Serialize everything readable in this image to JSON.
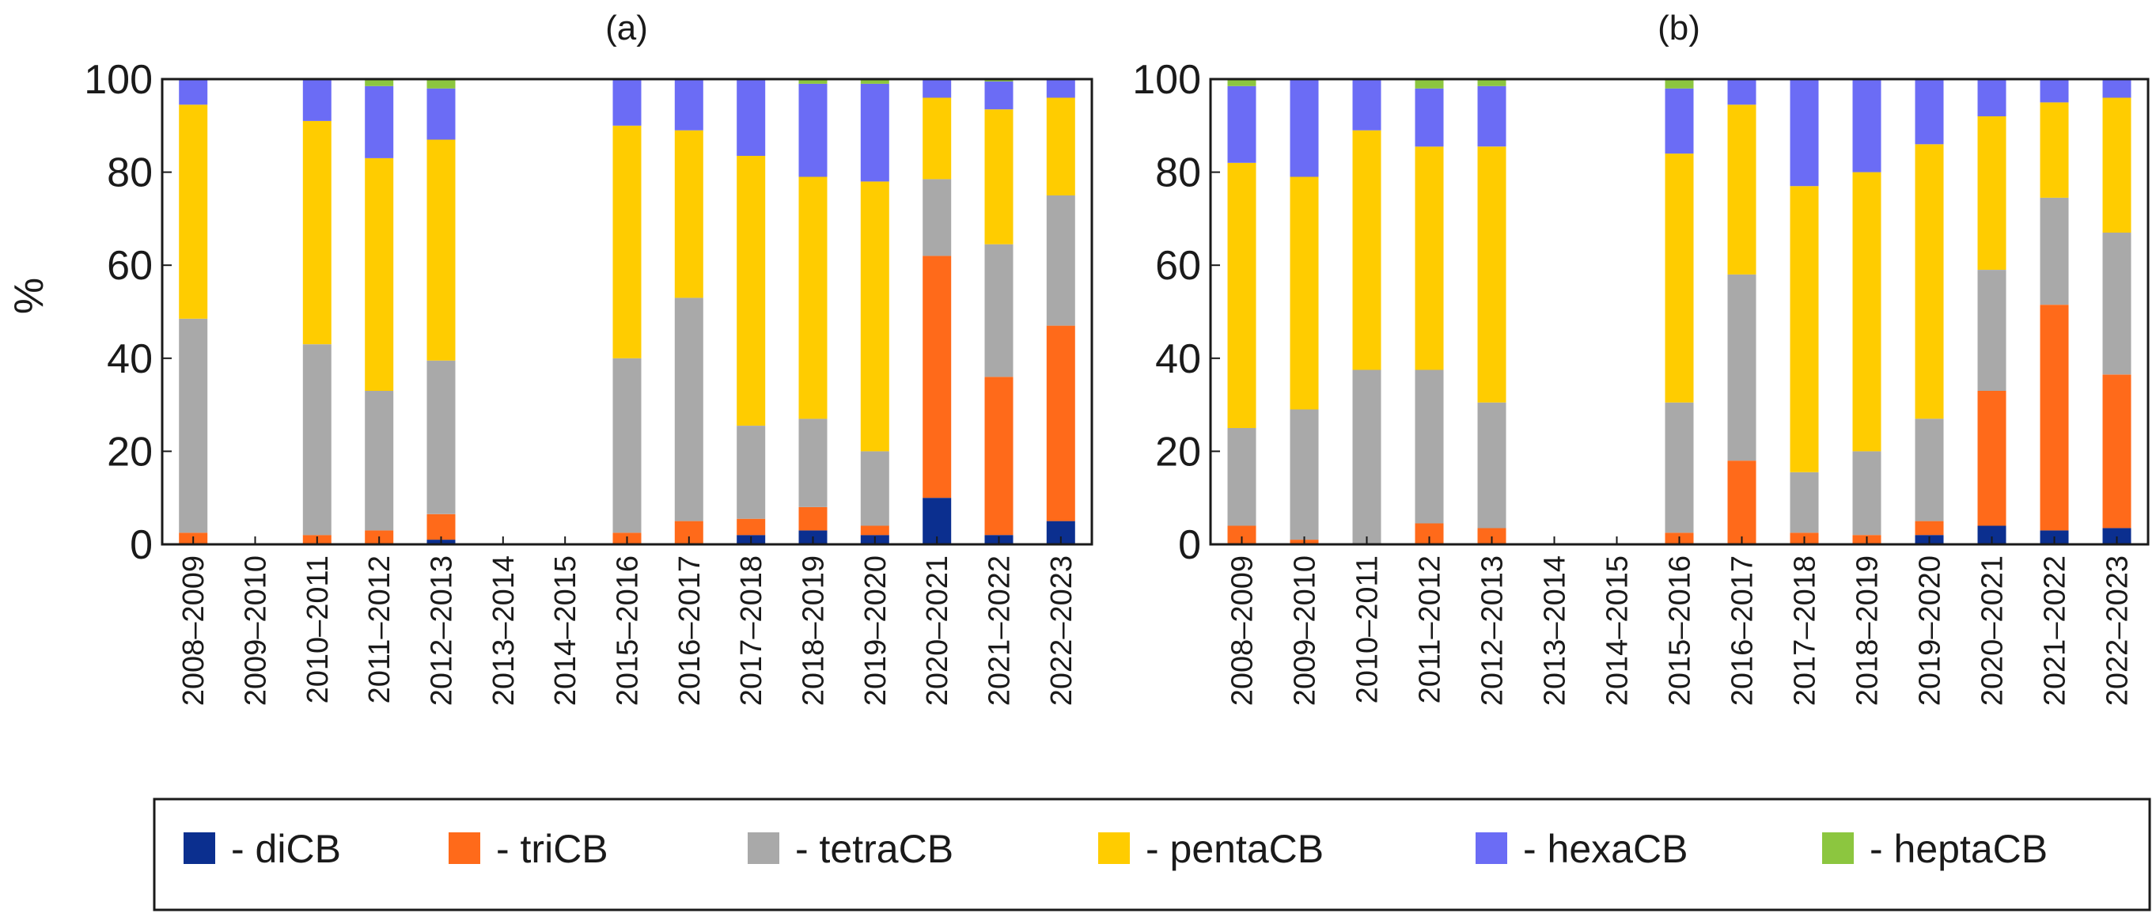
{
  "chart_data": {
    "type": "bar",
    "stacked": true,
    "ylim": [
      0,
      100
    ],
    "yticks": [
      0,
      20,
      40,
      60,
      80,
      100
    ],
    "ylabel": "%",
    "grid": false,
    "legend_position": "bottom",
    "categories": [
      "2008–2009",
      "2009–2010",
      "2010–2011",
      "2011–2012",
      "2012–2013",
      "2013–2014",
      "2014–2015",
      "2015–2016",
      "2016–2017",
      "2017–2018",
      "2018–2019",
      "2019–2020",
      "2020–2021",
      "2021–2022",
      "2022–2023"
    ],
    "legend": [
      {
        "key": "diCB",
        "label": "- diCB",
        "color": "#0b2f8f"
      },
      {
        "key": "triCB",
        "label": "- triCB",
        "color": "#ff6a1a"
      },
      {
        "key": "tetraCB",
        "label": "- tetraCB",
        "color": "#a9a9a9"
      },
      {
        "key": "pentaCB",
        "label": "- pentaCB",
        "color": "#ffcc00"
      },
      {
        "key": "hexaCB",
        "label": "- hexaCB",
        "color": "#6b6cf5"
      },
      {
        "key": "heptaCB",
        "label": "- heptaCB",
        "color": "#8cc63f"
      }
    ],
    "panels": [
      {
        "title": "(a)",
        "series": [
          {
            "name": "diCB",
            "values": [
              0,
              null,
              0,
              0,
              1,
              null,
              null,
              0,
              0,
              2,
              3,
              2,
              10,
              2,
              5
            ]
          },
          {
            "name": "triCB",
            "values": [
              2.5,
              null,
              2,
              3,
              5.5,
              null,
              null,
              2.5,
              5,
              3.5,
              5,
              2,
              52,
              34,
              42
            ]
          },
          {
            "name": "tetraCB",
            "values": [
              46,
              null,
              41,
              30,
              33,
              null,
              null,
              37.5,
              48,
              20,
              19,
              16,
              16.5,
              28.5,
              28
            ]
          },
          {
            "name": "pentaCB",
            "values": [
              46,
              null,
              48,
              50,
              47.5,
              null,
              null,
              50,
              36,
              58,
              52,
              58,
              17.5,
              29,
              21
            ]
          },
          {
            "name": "hexaCB",
            "values": [
              5.5,
              null,
              9,
              15.5,
              11,
              null,
              null,
              10,
              11,
              16.5,
              20,
              21,
              4,
              6,
              4
            ]
          },
          {
            "name": "heptaCB",
            "values": [
              0,
              null,
              0,
              1.5,
              2,
              null,
              null,
              0,
              0,
              0,
              1,
              1,
              0,
              0.5,
              0
            ]
          }
        ]
      },
      {
        "title": "(b)",
        "series": [
          {
            "name": "diCB",
            "values": [
              0,
              0,
              0,
              0,
              0,
              null,
              null,
              0,
              0,
              0,
              0,
              2,
              4,
              3,
              3.5
            ]
          },
          {
            "name": "triCB",
            "values": [
              4,
              1,
              0,
              4.5,
              3.5,
              null,
              null,
              2.5,
              18,
              2.5,
              2,
              3,
              29,
              48.5,
              33
            ]
          },
          {
            "name": "tetraCB",
            "values": [
              21,
              28,
              37.5,
              33,
              27,
              null,
              null,
              28,
              40,
              13,
              18,
              22,
              26,
              23,
              30.5
            ]
          },
          {
            "name": "pentaCB",
            "values": [
              57,
              50,
              51.5,
              48,
              55,
              null,
              null,
              53.5,
              36.5,
              61.5,
              60,
              59,
              33,
              20.5,
              29
            ]
          },
          {
            "name": "hexaCB",
            "values": [
              16.5,
              21,
              11,
              12.5,
              13,
              null,
              null,
              14,
              5.5,
              23,
              20,
              14,
              8,
              5,
              4
            ]
          },
          {
            "name": "heptaCB",
            "values": [
              1.5,
              0,
              0,
              2,
              1.5,
              null,
              null,
              2,
              0,
              0,
              0,
              0,
              0,
              0,
              0
            ]
          }
        ]
      }
    ]
  }
}
